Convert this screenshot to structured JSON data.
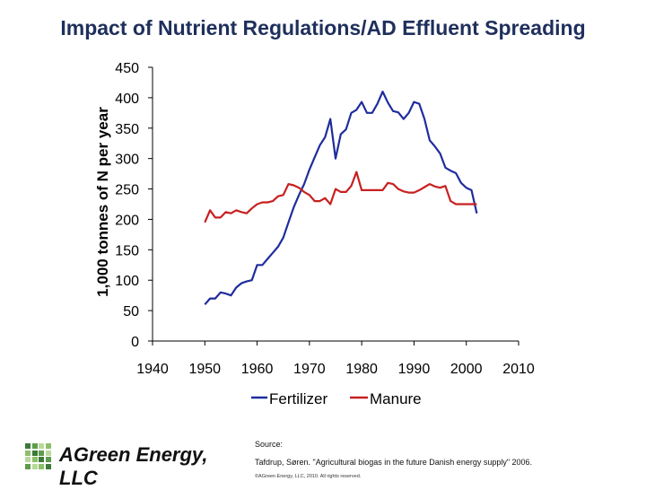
{
  "slide": {
    "title": "Impact of Nutrient Regulations/AD Effluent Spreading"
  },
  "footer": {
    "logo_text": "AGreen Energy, LLC",
    "source_label": "Source:",
    "source_text": "Tafdrup, Søren. \"Agricultural biogas in the future Danish energy supply\" 2006.",
    "copyright": "©AGreen Energy, LLC, 2010. All rights reserved.",
    "logo_colors": [
      "#3d7a3a",
      "#8cbf6a",
      "#b9d99c",
      "#5e9b4c"
    ]
  },
  "chart_data": {
    "type": "line",
    "title": "",
    "xlabel": "",
    "ylabel": "1,000 tonnes of N per year",
    "xlim": [
      1940,
      2010
    ],
    "ylim": [
      0,
      450
    ],
    "x_ticks": [
      "1940",
      "1950",
      "1960",
      "1970",
      "1980",
      "1990",
      "2000",
      "2010"
    ],
    "y_ticks": [
      "0",
      "50",
      "100",
      "150",
      "200",
      "250",
      "300",
      "350",
      "400",
      "450"
    ],
    "grid": false,
    "legend_position": "bottom",
    "series": [
      {
        "name": "Fertilizer",
        "color": "#1f2d9c",
        "x": [
          1950,
          1951,
          1952,
          1953,
          1954,
          1955,
          1956,
          1957,
          1958,
          1959,
          1960,
          1961,
          1962,
          1963,
          1964,
          1965,
          1966,
          1967,
          1968,
          1969,
          1970,
          1971,
          1972,
          1973,
          1974,
          1975,
          1976,
          1977,
          1978,
          1979,
          1980,
          1981,
          1982,
          1983,
          1984,
          1985,
          1986,
          1987,
          1988,
          1989,
          1990,
          1991,
          1992,
          1993,
          1994,
          1995,
          1996,
          1997,
          1998,
          1999,
          2000,
          2001,
          2002
        ],
        "values": [
          60,
          70,
          70,
          80,
          78,
          75,
          88,
          95,
          98,
          100,
          125,
          125,
          135,
          145,
          155,
          170,
          195,
          220,
          240,
          258,
          282,
          302,
          322,
          335,
          365,
          300,
          340,
          348,
          375,
          380,
          393,
          375,
          375,
          390,
          410,
          392,
          378,
          376,
          365,
          375,
          393,
          390,
          365,
          330,
          320,
          308,
          285,
          280,
          276,
          260,
          252,
          248,
          210
        ]
      },
      {
        "name": "Manure",
        "color": "#c82020",
        "x": [
          1950,
          1951,
          1952,
          1953,
          1954,
          1955,
          1956,
          1957,
          1958,
          1959,
          1960,
          1961,
          1962,
          1963,
          1964,
          1965,
          1966,
          1967,
          1968,
          1969,
          1970,
          1971,
          1972,
          1973,
          1974,
          1975,
          1976,
          1977,
          1978,
          1979,
          1980,
          1981,
          1982,
          1983,
          1984,
          1985,
          1986,
          1987,
          1988,
          1989,
          1990,
          1991,
          1992,
          1993,
          1994,
          1995,
          1996,
          1997,
          1998,
          1999,
          2000,
          2001,
          2002
        ],
        "values": [
          195,
          215,
          203,
          203,
          212,
          210,
          215,
          212,
          210,
          218,
          225,
          228,
          228,
          230,
          238,
          240,
          258,
          256,
          252,
          245,
          240,
          230,
          230,
          235,
          225,
          250,
          245,
          245,
          255,
          278,
          248,
          248,
          248,
          248,
          248,
          260,
          258,
          250,
          246,
          244,
          244,
          248,
          253,
          258,
          254,
          252,
          255,
          230,
          225,
          225,
          225,
          225,
          225
        ]
      }
    ]
  }
}
